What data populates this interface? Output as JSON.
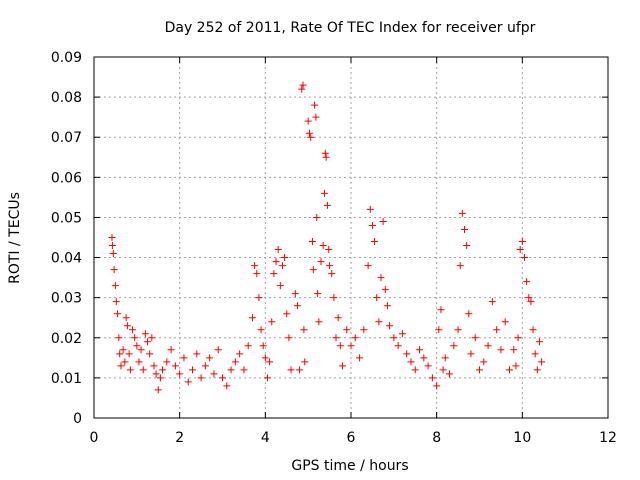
{
  "chart_data": {
    "type": "scatter",
    "title": "Day 252 of 2011, Rate Of TEC Index for receiver ufpr",
    "xlabel": "GPS time / hours",
    "ylabel": "ROTI / TECUs",
    "xlim": [
      0,
      12
    ],
    "ylim": [
      0,
      0.09
    ],
    "x_ticks": [
      0,
      2,
      4,
      6,
      8,
      10,
      12
    ],
    "x_tick_labels": [
      "0",
      "2",
      "4",
      "6",
      "8",
      "10",
      "12"
    ],
    "y_ticks": [
      0,
      0.01,
      0.02,
      0.03,
      0.04,
      0.05,
      0.06,
      0.07,
      0.08,
      0.09
    ],
    "y_tick_labels": [
      "0",
      "0.01",
      "0.02",
      "0.03",
      "0.04",
      "0.05",
      "0.06",
      "0.07",
      "0.08",
      "0.09"
    ],
    "grid": true,
    "marker": "+",
    "marker_color": "#ff0000",
    "series": [
      {
        "name": "ROTI",
        "points": [
          [
            0.42,
            0.045
          ],
          [
            0.43,
            0.043
          ],
          [
            0.45,
            0.041
          ],
          [
            0.47,
            0.037
          ],
          [
            0.5,
            0.033
          ],
          [
            0.52,
            0.029
          ],
          [
            0.55,
            0.026
          ],
          [
            0.58,
            0.02
          ],
          [
            0.6,
            0.016
          ],
          [
            0.63,
            0.013
          ],
          [
            0.68,
            0.017
          ],
          [
            0.72,
            0.014
          ],
          [
            0.75,
            0.025
          ],
          [
            0.78,
            0.023
          ],
          [
            0.82,
            0.016
          ],
          [
            0.85,
            0.012
          ],
          [
            0.9,
            0.022
          ],
          [
            0.95,
            0.02
          ],
          [
            1.0,
            0.018
          ],
          [
            1.05,
            0.014
          ],
          [
            1.1,
            0.017
          ],
          [
            1.15,
            0.012
          ],
          [
            1.2,
            0.021
          ],
          [
            1.25,
            0.019
          ],
          [
            1.3,
            0.016
          ],
          [
            1.35,
            0.02
          ],
          [
            1.4,
            0.013
          ],
          [
            1.45,
            0.011
          ],
          [
            1.5,
            0.007
          ],
          [
            1.55,
            0.01
          ],
          [
            1.6,
            0.012
          ],
          [
            1.7,
            0.014
          ],
          [
            1.8,
            0.017
          ],
          [
            1.9,
            0.013
          ],
          [
            2.0,
            0.011
          ],
          [
            2.1,
            0.015
          ],
          [
            2.2,
            0.009
          ],
          [
            2.3,
            0.012
          ],
          [
            2.4,
            0.016
          ],
          [
            2.5,
            0.01
          ],
          [
            2.6,
            0.013
          ],
          [
            2.7,
            0.015
          ],
          [
            2.8,
            0.011
          ],
          [
            2.9,
            0.017
          ],
          [
            3.0,
            0.01
          ],
          [
            3.1,
            0.008
          ],
          [
            3.2,
            0.012
          ],
          [
            3.3,
            0.014
          ],
          [
            3.4,
            0.016
          ],
          [
            3.5,
            0.012
          ],
          [
            3.6,
            0.018
          ],
          [
            3.7,
            0.025
          ],
          [
            3.75,
            0.038
          ],
          [
            3.8,
            0.036
          ],
          [
            3.85,
            0.03
          ],
          [
            3.9,
            0.022
          ],
          [
            3.95,
            0.018
          ],
          [
            4.0,
            0.015
          ],
          [
            4.05,
            0.01
          ],
          [
            4.1,
            0.014
          ],
          [
            4.15,
            0.024
          ],
          [
            4.2,
            0.036
          ],
          [
            4.25,
            0.039
          ],
          [
            4.3,
            0.042
          ],
          [
            4.35,
            0.033
          ],
          [
            4.4,
            0.038
          ],
          [
            4.45,
            0.04
          ],
          [
            4.5,
            0.026
          ],
          [
            4.55,
            0.02
          ],
          [
            4.6,
            0.012
          ],
          [
            4.7,
            0.031
          ],
          [
            4.75,
            0.028
          ],
          [
            4.8,
            0.012
          ],
          [
            4.85,
            0.082
          ],
          [
            4.88,
            0.083
          ],
          [
            4.9,
            0.022
          ],
          [
            4.92,
            0.014
          ],
          [
            5.0,
            0.074
          ],
          [
            5.03,
            0.071
          ],
          [
            5.06,
            0.07
          ],
          [
            5.1,
            0.044
          ],
          [
            5.12,
            0.037
          ],
          [
            5.15,
            0.078
          ],
          [
            5.18,
            0.075
          ],
          [
            5.2,
            0.05
          ],
          [
            5.22,
            0.031
          ],
          [
            5.25,
            0.024
          ],
          [
            5.3,
            0.039
          ],
          [
            5.35,
            0.043
          ],
          [
            5.38,
            0.056
          ],
          [
            5.4,
            0.066
          ],
          [
            5.42,
            0.065
          ],
          [
            5.45,
            0.053
          ],
          [
            5.48,
            0.042
          ],
          [
            5.5,
            0.038
          ],
          [
            5.55,
            0.036
          ],
          [
            5.6,
            0.03
          ],
          [
            5.65,
            0.02
          ],
          [
            5.7,
            0.025
          ],
          [
            5.75,
            0.018
          ],
          [
            5.8,
            0.013
          ],
          [
            5.9,
            0.022
          ],
          [
            6.0,
            0.018
          ],
          [
            6.1,
            0.02
          ],
          [
            6.2,
            0.015
          ],
          [
            6.3,
            0.022
          ],
          [
            6.4,
            0.038
          ],
          [
            6.45,
            0.052
          ],
          [
            6.5,
            0.048
          ],
          [
            6.55,
            0.044
          ],
          [
            6.6,
            0.03
          ],
          [
            6.65,
            0.024
          ],
          [
            6.7,
            0.035
          ],
          [
            6.75,
            0.049
          ],
          [
            6.8,
            0.032
          ],
          [
            6.85,
            0.028
          ],
          [
            6.9,
            0.023
          ],
          [
            7.0,
            0.02
          ],
          [
            7.1,
            0.018
          ],
          [
            7.2,
            0.021
          ],
          [
            7.3,
            0.016
          ],
          [
            7.4,
            0.014
          ],
          [
            7.5,
            0.012
          ],
          [
            7.6,
            0.017
          ],
          [
            7.7,
            0.015
          ],
          [
            7.8,
            0.013
          ],
          [
            7.9,
            0.01
          ],
          [
            8.0,
            0.008
          ],
          [
            8.05,
            0.022
          ],
          [
            8.1,
            0.027
          ],
          [
            8.15,
            0.012
          ],
          [
            8.2,
            0.015
          ],
          [
            8.3,
            0.011
          ],
          [
            8.4,
            0.018
          ],
          [
            8.5,
            0.022
          ],
          [
            8.55,
            0.038
          ],
          [
            8.6,
            0.051
          ],
          [
            8.65,
            0.047
          ],
          [
            8.7,
            0.043
          ],
          [
            8.75,
            0.026
          ],
          [
            8.8,
            0.016
          ],
          [
            8.9,
            0.02
          ],
          [
            9.0,
            0.012
          ],
          [
            9.1,
            0.014
          ],
          [
            9.2,
            0.018
          ],
          [
            9.3,
            0.029
          ],
          [
            9.4,
            0.022
          ],
          [
            9.5,
            0.017
          ],
          [
            9.6,
            0.024
          ],
          [
            9.7,
            0.012
          ],
          [
            9.8,
            0.017
          ],
          [
            9.85,
            0.013
          ],
          [
            9.9,
            0.02
          ],
          [
            9.95,
            0.042
          ],
          [
            10.0,
            0.044
          ],
          [
            10.05,
            0.04
          ],
          [
            10.1,
            0.034
          ],
          [
            10.15,
            0.03
          ],
          [
            10.2,
            0.029
          ],
          [
            10.25,
            0.022
          ],
          [
            10.3,
            0.016
          ],
          [
            10.35,
            0.012
          ],
          [
            10.4,
            0.019
          ],
          [
            10.45,
            0.014
          ]
        ]
      }
    ]
  }
}
